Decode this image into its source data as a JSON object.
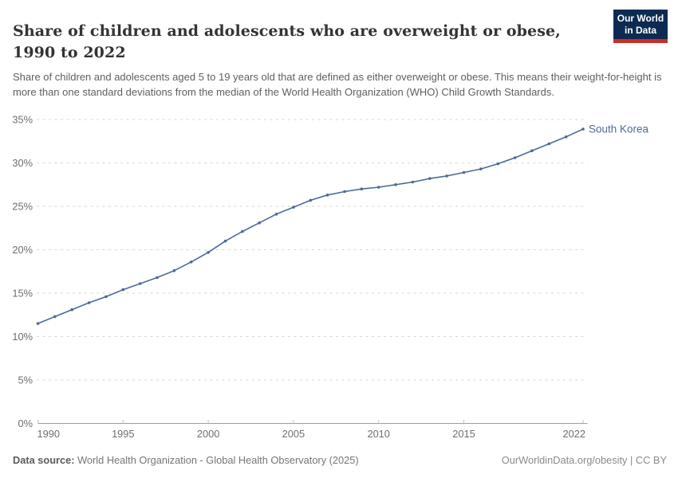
{
  "header": {
    "title": "Share of children and adolescents who are overweight or obese, 1990 to 2022",
    "subtitle": "Share of children and adolescents aged 5 to 19 years old that are defined as either overweight or obese. This means their weight-for-height is more than one standard deviations from the median of the World Health Organization (WHO) Child Growth Standards."
  },
  "logo": {
    "line1": "Our World",
    "line2": "in Data",
    "bg_color": "#0d2b52",
    "bar_color": "#cb2d26"
  },
  "chart_data": {
    "type": "line",
    "title": "Share of children and adolescents who are overweight or obese, 1990 to 2022",
    "xlabel": "",
    "ylabel": "",
    "xlim": [
      1990,
      2022
    ],
    "ylim": [
      0,
      35
    ],
    "grid": "horizontal-dashed",
    "legend_position": "end-of-line-label",
    "x": [
      1990,
      1991,
      1992,
      1993,
      1994,
      1995,
      1996,
      1997,
      1998,
      1999,
      2000,
      2001,
      2002,
      2003,
      2004,
      2005,
      2006,
      2007,
      2008,
      2009,
      2010,
      2011,
      2012,
      2013,
      2014,
      2015,
      2016,
      2017,
      2018,
      2019,
      2020,
      2021,
      2022
    ],
    "series": [
      {
        "name": "South Korea",
        "color": "#4C6A9C",
        "values": [
          11.5,
          12.3,
          13.1,
          13.9,
          14.6,
          15.4,
          16.1,
          16.8,
          17.6,
          18.6,
          19.7,
          21.0,
          22.1,
          23.1,
          24.1,
          24.9,
          25.7,
          26.3,
          26.7,
          27.0,
          27.2,
          27.5,
          27.8,
          28.2,
          28.5,
          28.9,
          29.3,
          29.9,
          30.6,
          31.4,
          32.2,
          33.0,
          33.9
        ]
      }
    ],
    "xticks": [
      1990,
      1995,
      2000,
      2005,
      2010,
      2015,
      2022
    ],
    "yticks": [
      0,
      5,
      10,
      15,
      20,
      25,
      30,
      35
    ],
    "ytick_format": "{}%",
    "end_label": "South Korea",
    "axis_color": "#9e9e9e",
    "grid_color": "#d7d7d7",
    "tick_label_color": "#6e6e6e"
  },
  "footer": {
    "source_label": "Data source:",
    "source_value": " World Health Organization - Global Health Observatory (2025)",
    "attribution": "OurWorldinData.org/obesity | CC BY"
  }
}
